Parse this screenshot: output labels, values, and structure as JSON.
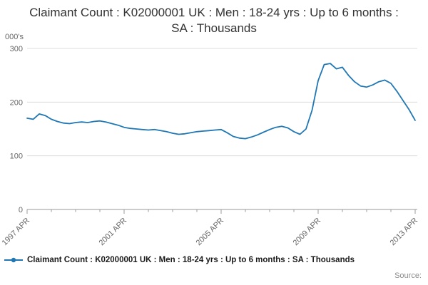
{
  "page": {
    "title": "Claimant Count : K02000001 UK : Men : 18-24 yrs : Up to 6 months : SA : Thousands",
    "source_label": "Source:"
  },
  "legend": {
    "label": "Claimant Count : K02000001 UK : Men : 18-24 yrs : Up to 6 months : SA : Thousands"
  },
  "colors": {
    "line": "#1f77b4",
    "grid": "#dcdcdc",
    "axis": "#9a9a9a",
    "tick_text": "#666666",
    "title_text": "#333333",
    "legend_text": "#1a1a1a",
    "source_text": "#8c8c8c"
  },
  "chart_data": {
    "type": "line",
    "title": "Claimant Count : K02000001 UK : Men : 18-24 yrs : Up to 6 months : SA : Thousands",
    "xlabel": "",
    "ylabel": "000's",
    "unit_label": "000's",
    "series_name": "Claimant Count : K02000001 UK : Men : 18-24 yrs : Up to 6 months : SA : Thousands",
    "xlim": [
      1997.25,
      2013.25
    ],
    "ylim": [
      0,
      300
    ],
    "yticks": [
      0,
      100,
      200,
      300
    ],
    "x_tick_positions": [
      1997.25,
      2001.25,
      2005.25,
      2009.25,
      2013.25
    ],
    "x_tick_labels": [
      "1997 APR",
      "2001 APR",
      "2005 APR",
      "2009 APR",
      "2013 APR"
    ],
    "minor_ticks": {
      "start": 1997.25,
      "step": 1,
      "end": 2013.25
    },
    "grid": "horizontal",
    "legend_position": "bottom",
    "x": [
      1997.25,
      1997.5,
      1997.75,
      1998.0,
      1998.25,
      1998.5,
      1998.75,
      1999.0,
      1999.25,
      1999.5,
      1999.75,
      2000.0,
      2000.25,
      2000.5,
      2000.75,
      2001.0,
      2001.25,
      2001.5,
      2001.75,
      2002.0,
      2002.25,
      2002.5,
      2002.75,
      2003.0,
      2003.25,
      2003.5,
      2003.75,
      2004.0,
      2004.25,
      2004.5,
      2004.75,
      2005.0,
      2005.25,
      2005.5,
      2005.75,
      2006.0,
      2006.25,
      2006.5,
      2006.75,
      2007.0,
      2007.25,
      2007.5,
      2007.75,
      2008.0,
      2008.25,
      2008.5,
      2008.75,
      2009.0,
      2009.25,
      2009.5,
      2009.75,
      2010.0,
      2010.25,
      2010.5,
      2010.75,
      2011.0,
      2011.25,
      2011.5,
      2011.75,
      2012.0,
      2012.25,
      2012.5,
      2012.75,
      2013.0,
      2013.25
    ],
    "values": [
      170,
      168,
      178,
      175,
      168,
      164,
      161,
      160,
      162,
      163,
      162,
      164,
      165,
      163,
      160,
      157,
      153,
      151,
      150,
      149,
      148,
      149,
      147,
      145,
      142,
      140,
      141,
      143,
      145,
      146,
      147,
      148,
      149,
      143,
      136,
      133,
      132,
      135,
      139,
      144,
      149,
      153,
      155,
      152,
      145,
      140,
      150,
      185,
      240,
      270,
      272,
      262,
      265,
      250,
      238,
      230,
      228,
      232,
      238,
      241,
      235,
      220,
      203,
      186,
      166
    ]
  }
}
